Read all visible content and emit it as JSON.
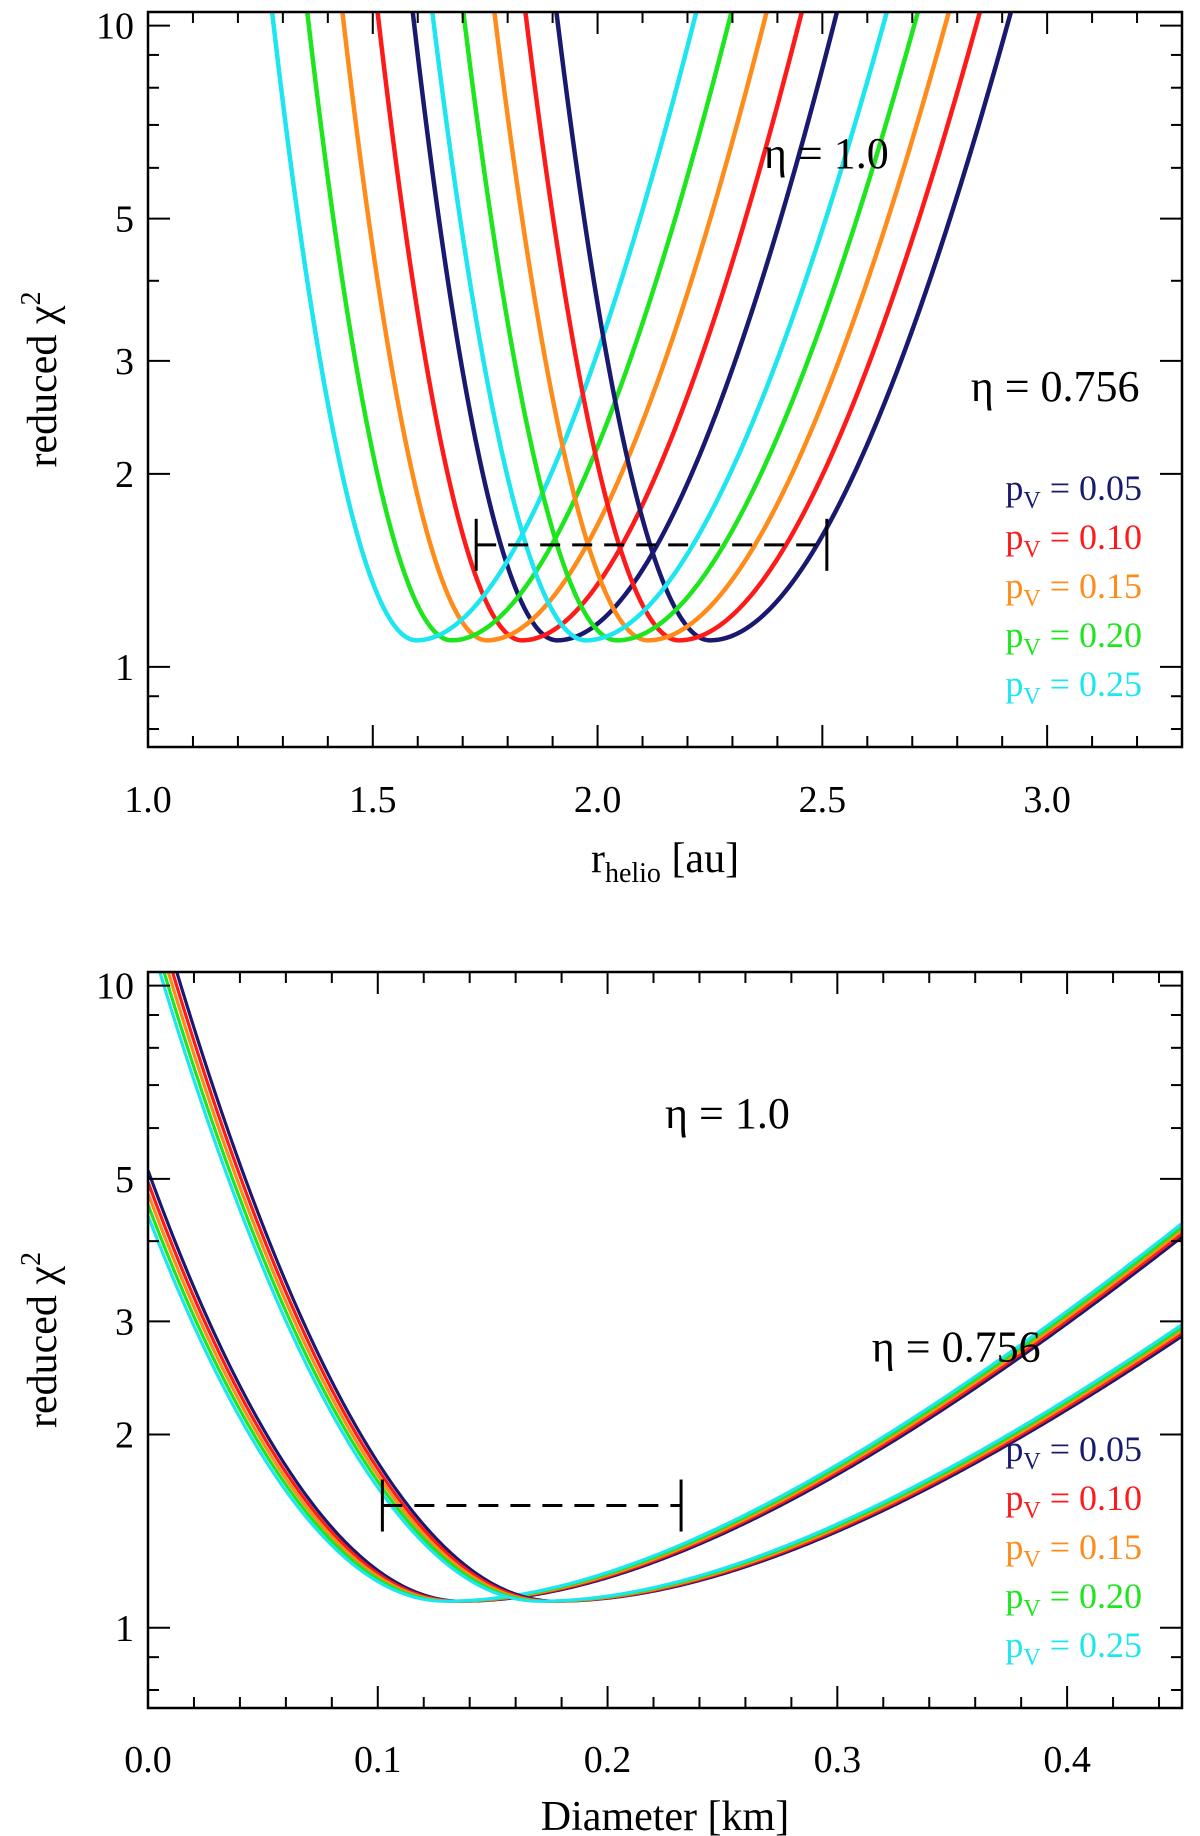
{
  "chart_data": [
    {
      "type": "line",
      "xlabel": "r",
      "xlabel_sub": "helio",
      "xlabel_unit": " [au]",
      "ylabel": "reduced χ",
      "ylabel_sup": "2",
      "yscale": "log",
      "xlim": [
        1.0,
        3.3
      ],
      "ylim": [
        0.75,
        10.5
      ],
      "xticks": [
        {
          "v": 1.0,
          "label": "1.0"
        },
        {
          "v": 1.5,
          "label": "1.5"
        },
        {
          "v": 2.0,
          "label": "2.0"
        },
        {
          "v": 2.5,
          "label": "2.5"
        },
        {
          "v": 3.0,
          "label": "3.0"
        }
      ],
      "x_minor_step": 0.1,
      "yticks": [
        {
          "v": 1,
          "label": "1"
        },
        {
          "v": 2,
          "label": "2"
        },
        {
          "v": 3,
          "label": "3"
        },
        {
          "v": 5,
          "label": "5"
        },
        {
          "v": 10,
          "label": "10"
        }
      ],
      "y_minor": [
        0.8,
        0.9,
        4,
        6,
        7,
        8,
        9
      ],
      "annotations": [
        {
          "text": "η = 1.0",
          "x": 2.37,
          "y": 6.0
        },
        {
          "text": "η = 0.756",
          "x": 2.83,
          "y": 2.6
        }
      ],
      "legend_position": "lower-right",
      "error_bar": {
        "x_low": 1.73,
        "x_high": 2.51,
        "y": 1.55
      },
      "groups": [
        {
          "name": "η = 0.756",
          "x_min": 1.91,
          "y_min": 1.1,
          "k_left": 9.5,
          "k_right": 3.35,
          "shift": 0.34
        },
        {
          "name": "η = 1.0",
          "x_min": 2.25,
          "y_min": 1.1,
          "k_left": 8.4,
          "k_right": 2.95,
          "shift": 0.3
        }
      ],
      "series": [
        {
          "name": "pV = 0.05",
          "color": "#191970",
          "index": 0
        },
        {
          "name": "pV = 0.10",
          "color": "#ff1a1a",
          "index": 1
        },
        {
          "name": "pV = 0.15",
          "color": "#ff8c1a",
          "index": 2
        },
        {
          "name": "pV = 0.20",
          "color": "#1ee61e",
          "index": 3
        },
        {
          "name": "pV = 0.25",
          "color": "#1ee6f0",
          "index": 4
        }
      ]
    },
    {
      "type": "line",
      "xlabel": "Diameter [km]",
      "xlabel_sub": "",
      "xlabel_unit": "",
      "ylabel": "reduced χ",
      "ylabel_sup": "2",
      "yscale": "log",
      "xlim": [
        0.0,
        0.45
      ],
      "ylim": [
        0.75,
        10.5
      ],
      "xticks": [
        {
          "v": 0.0,
          "label": "0.0"
        },
        {
          "v": 0.1,
          "label": "0.1"
        },
        {
          "v": 0.2,
          "label": "0.2"
        },
        {
          "v": 0.3,
          "label": "0.3"
        },
        {
          "v": 0.4,
          "label": "0.4"
        }
      ],
      "x_minor_step": 0.02,
      "yticks": [
        {
          "v": 1,
          "label": "1"
        },
        {
          "v": 2,
          "label": "2"
        },
        {
          "v": 3,
          "label": "3"
        },
        {
          "v": 5,
          "label": "5"
        },
        {
          "v": 10,
          "label": "10"
        }
      ],
      "y_minor": [
        0.8,
        0.9,
        4,
        6,
        7,
        8,
        9
      ],
      "annotations": [
        {
          "text": "η = 1.0",
          "x": 0.225,
          "y": 6.0
        },
        {
          "text": "η = 0.756",
          "x": 0.315,
          "y": 2.6
        }
      ],
      "legend_position": "lower-right",
      "error_bar": {
        "x_low": 0.102,
        "x_high": 0.232,
        "y": 1.55
      },
      "groups": [
        {
          "name": "η = 0.756",
          "x_min": 0.1365,
          "y_min": 1.1,
          "k_left": 36.0,
          "k_right": 10.6,
          "shift": 0.041
        },
        {
          "name": "η = 1.0",
          "x_min": 0.1775,
          "y_min": 1.1,
          "k_left": 36.0,
          "k_right": 9.6,
          "shift": 0.041
        }
      ],
      "series": [
        {
          "name": "pV = 0.05",
          "color": "#191970",
          "index": 0
        },
        {
          "name": "pV = 0.10",
          "color": "#ff1a1a",
          "index": 1
        },
        {
          "name": "pV = 0.15",
          "color": "#ff8c1a",
          "index": 2
        },
        {
          "name": "pV = 0.20",
          "color": "#1ee61e",
          "index": 3
        },
        {
          "name": "pV = 0.25",
          "color": "#1ee6f0",
          "index": 4
        }
      ]
    }
  ]
}
